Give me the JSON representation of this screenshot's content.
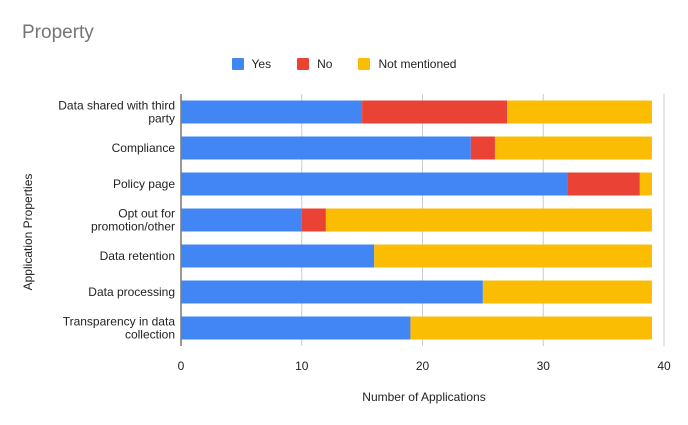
{
  "chart_data": {
    "type": "bar",
    "orientation": "horizontal",
    "stacked": true,
    "title": "Property",
    "xlabel": "Number of Applications",
    "ylabel": "Application Properties",
    "xlim": [
      0,
      40
    ],
    "xticks": [
      0,
      10,
      20,
      30,
      40
    ],
    "grid": true,
    "legend_position": "top",
    "categories": [
      [
        "Data shared with third",
        "party"
      ],
      [
        "Compliance"
      ],
      [
        "Policy page"
      ],
      [
        "Opt out for",
        "promotion/other"
      ],
      [
        "Data retention"
      ],
      [
        "Data processing"
      ],
      [
        "Transparency in data",
        "collection"
      ]
    ],
    "series": [
      {
        "name": "Yes",
        "color": "#4285f4",
        "values": [
          15,
          24,
          32,
          10,
          16,
          25,
          19
        ]
      },
      {
        "name": "No",
        "color": "#ea4335",
        "values": [
          12,
          2,
          6,
          2,
          0,
          0,
          0
        ]
      },
      {
        "name": "Not mentioned",
        "color": "#fbbc04",
        "values": [
          12,
          13,
          1,
          27,
          23,
          14,
          20
        ]
      }
    ]
  }
}
